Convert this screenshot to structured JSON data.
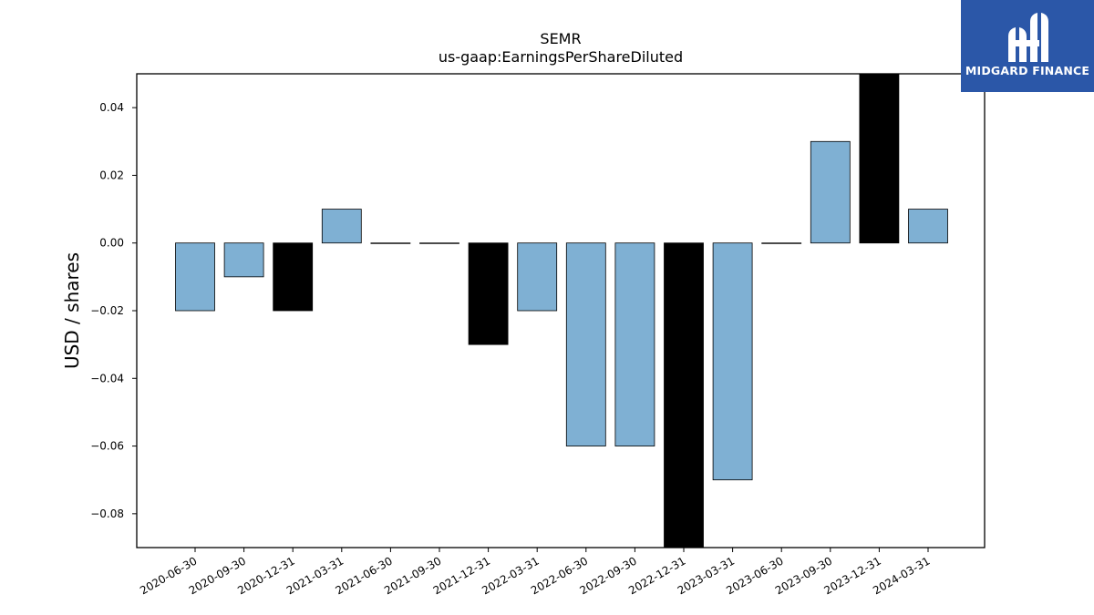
{
  "brand": {
    "name": "MIDGARD FINANCE",
    "logo_icon": "midgard-mh-monogram-icon",
    "color": "#2b57a8"
  },
  "colors": {
    "bar_regular": "#7fb0d3",
    "bar_year_end": "#000000",
    "bar_edge": "#000000"
  },
  "chart_data": {
    "type": "bar",
    "title": "SEMR",
    "subtitle": "us-gaap:EarningsPerShareDiluted",
    "xlabel": "",
    "ylabel": "USD / shares",
    "ylim": [
      -0.09,
      0.05
    ],
    "yticks": [
      -0.08,
      -0.06,
      -0.04,
      -0.02,
      0.0,
      0.02,
      0.04
    ],
    "ytick_labels": [
      "−0.08",
      "−0.06",
      "−0.04",
      "−0.02",
      "0.00",
      "0.02",
      "0.04"
    ],
    "grid": false,
    "categories": [
      "2020-06-30",
      "2020-09-30",
      "2020-12-31",
      "2021-03-31",
      "2021-06-30",
      "2021-09-30",
      "2021-12-31",
      "2022-03-31",
      "2022-06-30",
      "2022-09-30",
      "2022-12-31",
      "2023-03-31",
      "2023-06-30",
      "2023-09-30",
      "2023-12-31",
      "2024-03-31"
    ],
    "values": [
      -0.02,
      -0.01,
      -0.02,
      0.01,
      0.0,
      0.0,
      -0.03,
      -0.02,
      -0.06,
      -0.06,
      -0.09,
      -0.07,
      0.0,
      0.03,
      0.05,
      0.01
    ],
    "highlight": [
      false,
      false,
      true,
      false,
      false,
      false,
      true,
      false,
      false,
      false,
      true,
      false,
      false,
      false,
      true,
      false
    ]
  }
}
